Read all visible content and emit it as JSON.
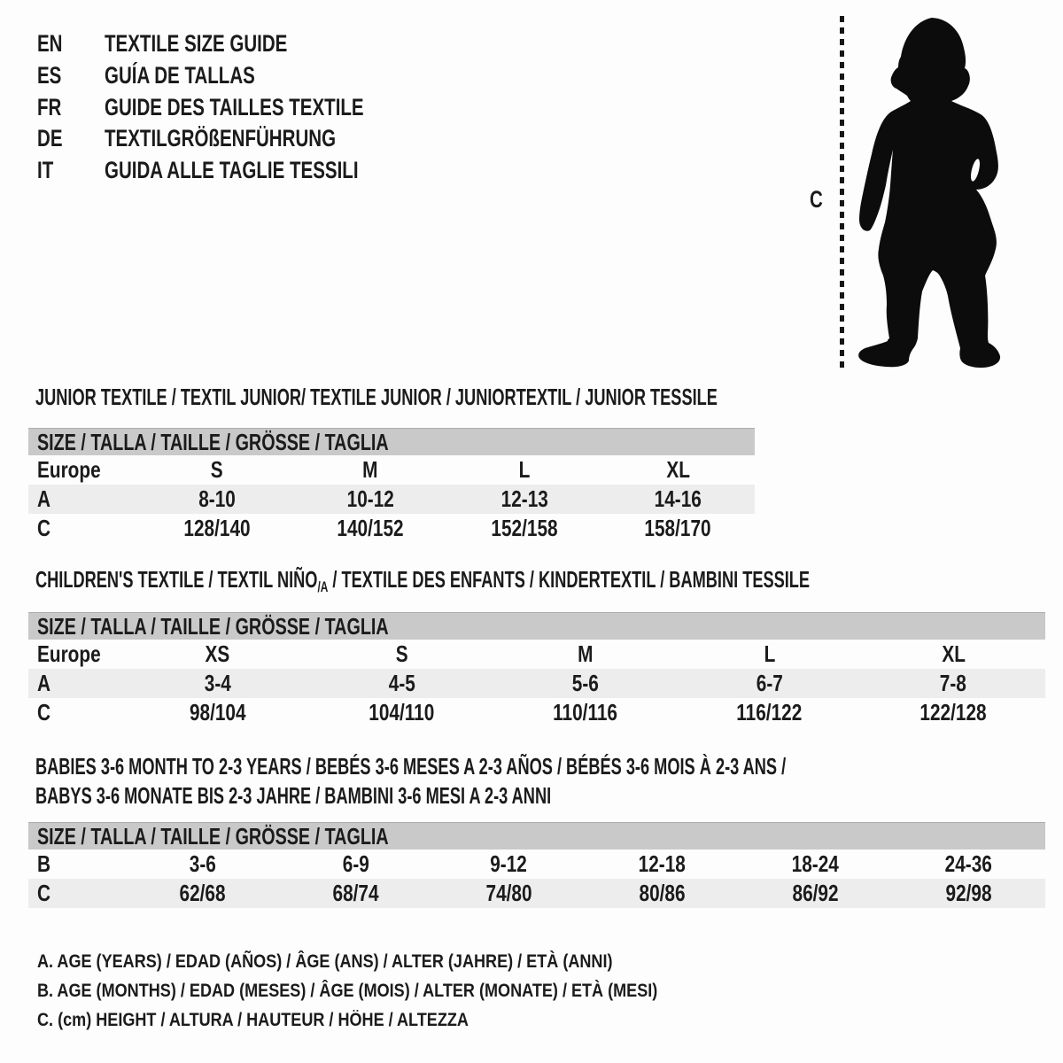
{
  "colors": {
    "header_bar": "#c9c9c9",
    "alt_row": "#ededed",
    "text": "#1b1b1b",
    "background": "#fdfdfd"
  },
  "header": {
    "languages": [
      {
        "code": "EN",
        "title": "TEXTILE SIZE GUIDE"
      },
      {
        "code": "ES",
        "title": "GUÍA DE TALLAS"
      },
      {
        "code": "FR",
        "title": "GUIDE DES TAILLES TEXTILE"
      },
      {
        "code": "DE",
        "title": "TEXTILGRÖßENFÜHRUNG"
      },
      {
        "code": "IT",
        "title": "GUIDA ALLE TAGLIE TESSILI"
      }
    ]
  },
  "figure": {
    "label": "C",
    "icon": "toddler-silhouette-icon"
  },
  "sections": [
    {
      "id": "junior",
      "title": "JUNIOR TEXTILE / TEXTIL JUNIOR/ TEXTILE JUNIOR / JUNIORTEXTIL / JUNIOR TESSILE",
      "size_header": "SIZE / TALLA / TAILLE / GRÖSSE / TAGLIA",
      "rows": [
        [
          "Europe",
          "S",
          "M",
          "L",
          "XL"
        ],
        [
          "A",
          "8-10",
          "10-12",
          "12-13",
          "14-16"
        ],
        [
          "C",
          "128/140",
          "140/152",
          "152/158",
          "158/170"
        ]
      ]
    },
    {
      "id": "children",
      "title_prefix": "CHILDREN'S TEXTILE / TEXTIL NIÑO",
      "title_sub": "/A",
      "title_suffix": " / TEXTILE DES ENFANTS / KINDERTEXTIL / BAMBINI TESSILE",
      "size_header": "SIZE / TALLA / TAILLE / GRÖSSE / TAGLIA",
      "rows": [
        [
          "Europe",
          "XS",
          "S",
          "M",
          "L",
          "XL"
        ],
        [
          "A",
          "3-4",
          "4-5",
          "5-6",
          "6-7",
          "7-8"
        ],
        [
          "C",
          "98/104",
          "104/110",
          "110/116",
          "116/122",
          "122/128"
        ]
      ]
    },
    {
      "id": "babies",
      "title_line1": "BABIES 3-6 MONTH TO 2-3 YEARS / BEBÉS 3-6 MESES A 2-3 AÑOS / BÉBÉS 3-6 MOIS À 2-3 ANS /",
      "title_line2": "BABYS 3-6 MONATE BIS 2-3 JAHRE / BAMBINI 3-6 MESI A 2-3 ANNI",
      "size_header": "SIZE / TALLA / TAILLE / GRÖSSE / TAGLIA",
      "rows": [
        [
          "B",
          "3-6",
          "6-9",
          "9-12",
          "12-18",
          "18-24",
          "24-36"
        ],
        [
          "C",
          "62/68",
          "68/74",
          "74/80",
          "80/86",
          "86/92",
          "92/98"
        ]
      ]
    }
  ],
  "footnotes": [
    "A. AGE (YEARS) / EDAD (AÑOS) / ÂGE (ANS) / ALTER (JAHRE) / ETÀ (ANNI)",
    "B. AGE (MONTHS) / EDAD (MESES) / ÂGE (MOIS) / ALTER (MONATE) / ETÀ (MESI)",
    "C. (cm) HEIGHT / ALTURA / HAUTEUR / HÖHE / ALTEZZA"
  ]
}
